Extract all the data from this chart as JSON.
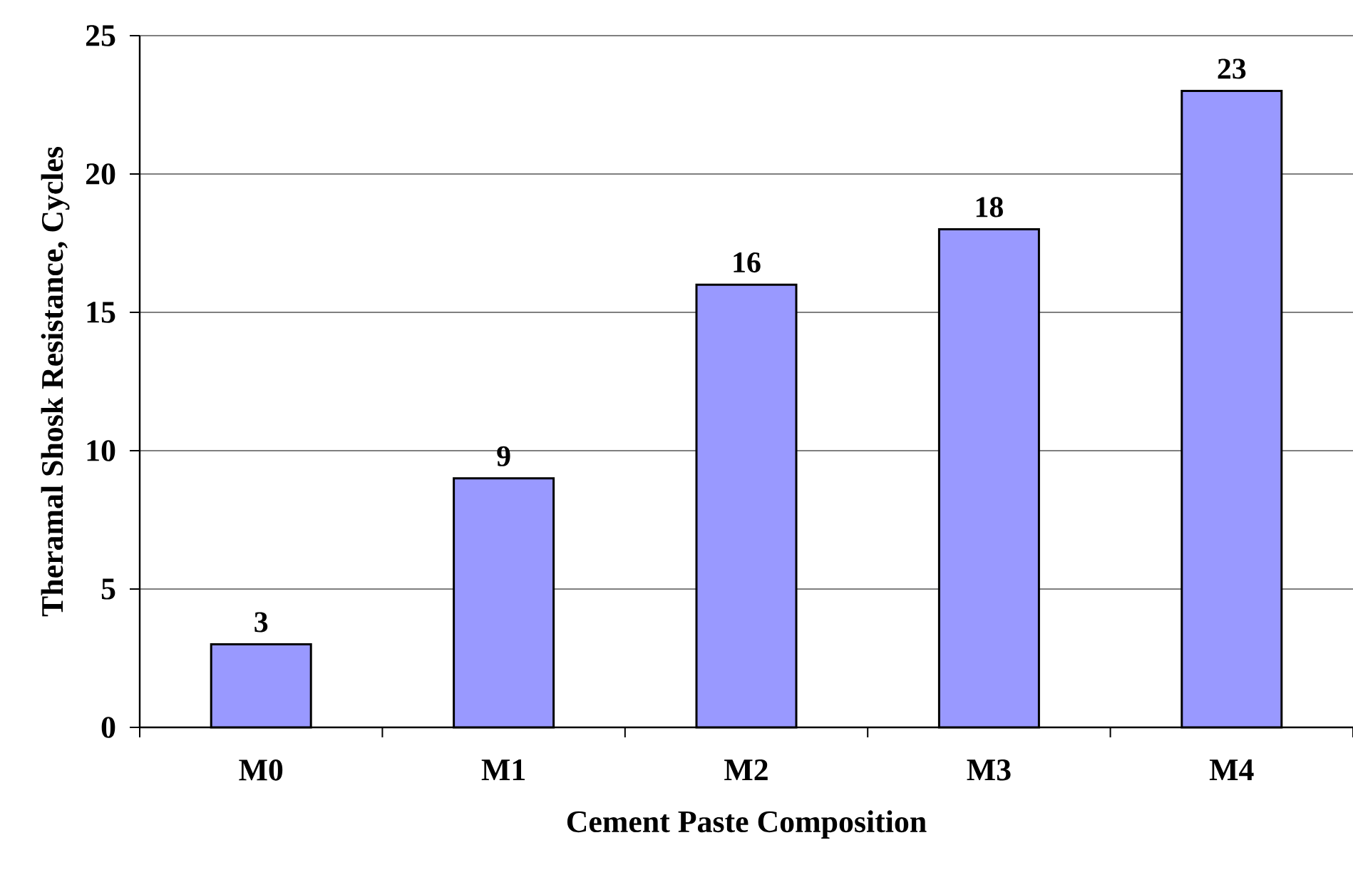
{
  "chart_data": {
    "type": "bar",
    "xlabel": "Cement Paste Composition",
    "ylabel": "Theramal Shosk Resistance, Cycles",
    "categories": [
      "M0",
      "M1",
      "M2",
      "M3",
      "M4"
    ],
    "values": [
      3,
      9,
      16,
      18,
      23
    ],
    "color": "#9999ff",
    "ylim": [
      0,
      25
    ],
    "yticks": [
      0,
      5,
      10,
      15,
      20,
      25
    ],
    "grid": "y",
    "data_labels": true
  }
}
